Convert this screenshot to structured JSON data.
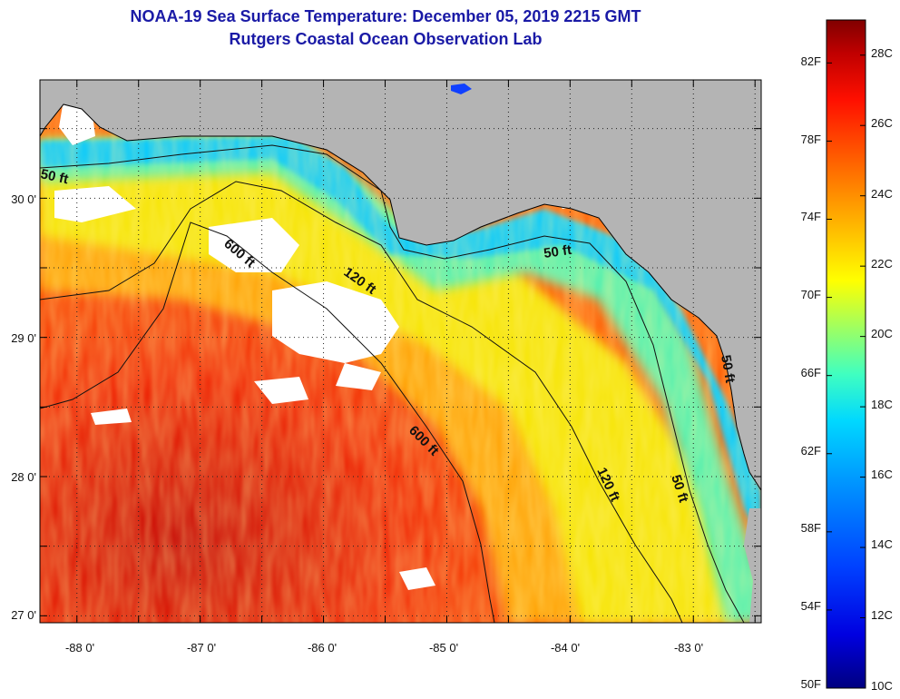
{
  "title": {
    "line1": "NOAA-19 Sea Surface Temperature:  December 05, 2019 2215 GMT",
    "line2": "Rutgers Coastal Ocean Observation Lab"
  },
  "map": {
    "lon_ticks": [
      "-88 0'",
      "-87 0'",
      "-86 0'",
      "-85 0'",
      "-84 0'",
      "-83 0'"
    ],
    "lat_ticks": [
      "30 0'",
      "29 0'",
      "28 0'",
      "27 0'"
    ],
    "lon_range": [
      -88.3,
      -82.45
    ],
    "lat_range": [
      26.95,
      30.85
    ],
    "grid": "dotted",
    "land_color": "#b4b4b4",
    "cloud_color": "#ffffff",
    "contour_labels": [
      "50 ft",
      "120 ft",
      "600 ft",
      "600 ft",
      "50 ft",
      "120 ft",
      "50 ft",
      "50 ft"
    ]
  },
  "colorbar": {
    "fahrenheit_labels": [
      "82F",
      "78F",
      "74F",
      "70F",
      "66F",
      "62F",
      "58F",
      "54F",
      "50F"
    ],
    "celsius_labels": [
      "28C",
      "26C",
      "24C",
      "22C",
      "20C",
      "18C",
      "16C",
      "14C",
      "12C",
      "10C"
    ],
    "range_c": [
      10,
      29
    ],
    "colors": [
      "#000080",
      "#0000e0",
      "#0040ff",
      "#0090ff",
      "#00d8ff",
      "#40ffc0",
      "#a0ff60",
      "#ffff00",
      "#ffb000",
      "#ff6000",
      "#ff1000",
      "#c00000",
      "#800000"
    ]
  }
}
